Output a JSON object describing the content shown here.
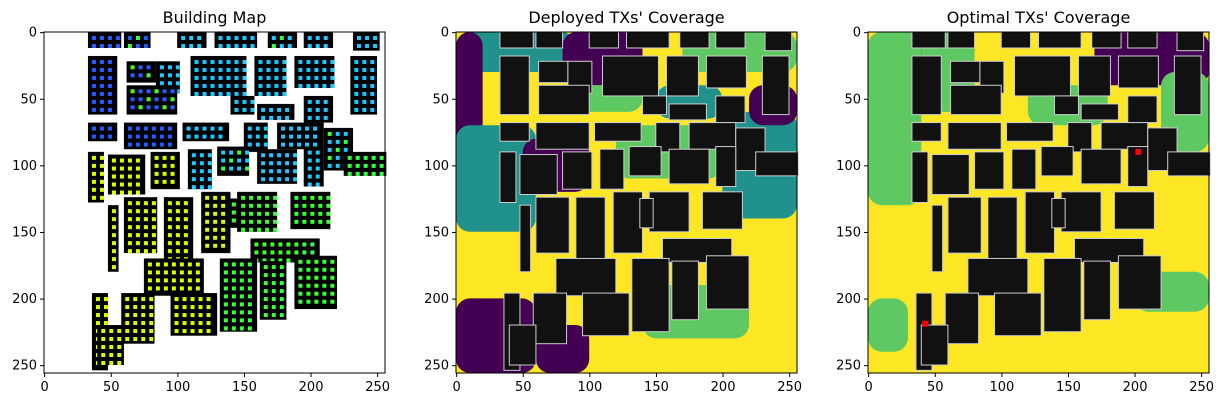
{
  "chart_data": [
    {
      "type": "heatmap",
      "title": "Building Map",
      "xlim": [
        0,
        255
      ],
      "ylim": [
        255,
        0
      ],
      "xticks": [
        0,
        50,
        100,
        150,
        200,
        250
      ],
      "yticks": [
        0,
        50,
        100,
        150,
        200,
        250
      ],
      "grid": false,
      "legend": "none",
      "background": "#ffffff",
      "colors": {
        "building": "#000000",
        "tx_blue": "#1f5fff",
        "tx_cyan": "#1fc8ff",
        "tx_green": "#3cff3c",
        "tx_yellow": "#d8ff00"
      }
    },
    {
      "type": "heatmap",
      "title": "Deployed TXs' Coverage",
      "xlim": [
        0,
        255
      ],
      "ylim": [
        255,
        0
      ],
      "xticks": [
        0,
        50,
        100,
        150,
        200,
        250
      ],
      "yticks": [
        0,
        50,
        100,
        150,
        200,
        250
      ],
      "grid": false,
      "legend": "none",
      "colors": {
        "high": "#fde725",
        "mid_high": "#5ec962",
        "mid": "#21918c",
        "low": "#440154",
        "building": "#111111"
      }
    },
    {
      "type": "heatmap",
      "title": "Optimal TXs' Coverage",
      "xlim": [
        0,
        255
      ],
      "ylim": [
        255,
        0
      ],
      "xticks": [
        0,
        50,
        100,
        150,
        200,
        250
      ],
      "yticks": [
        0,
        50,
        100,
        150,
        200,
        250
      ],
      "grid": false,
      "legend": "none",
      "colors": {
        "high": "#fde725",
        "mid_high": "#5ec962",
        "mid": "#21918c",
        "low": "#440154",
        "building": "#111111",
        "tx_marker": "#ff0000"
      },
      "tx_locations": [
        [
          203,
          90
        ],
        [
          43,
          219
        ]
      ]
    }
  ]
}
